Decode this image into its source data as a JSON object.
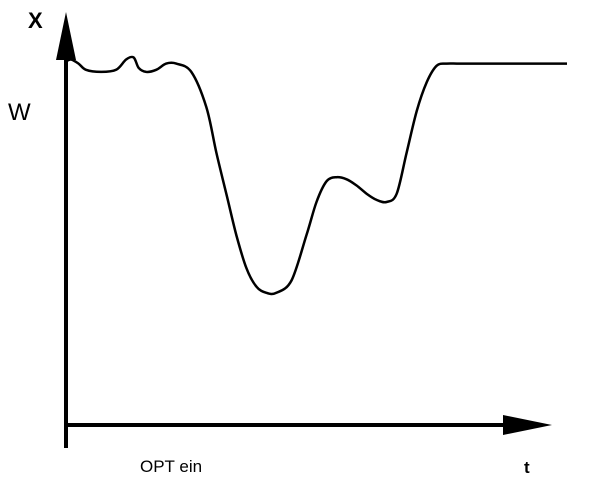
{
  "chart_data": {
    "type": "line",
    "title": "",
    "xlabel": "t",
    "ylabel": "X",
    "setpoint_label": "W",
    "annotation": "OPT ein",
    "grid": false,
    "legend": "none",
    "x_range": [
      0,
      10
    ],
    "y_range": [
      0,
      10
    ],
    "line_color": "#000000",
    "series": [
      {
        "x": [
          0.0,
          0.1,
          0.25,
          0.4,
          0.7,
          1.0,
          1.2,
          1.35,
          1.45,
          1.6,
          1.8,
          2.0,
          2.2,
          2.5,
          2.8,
          3.0,
          3.2,
          3.4,
          3.6,
          3.8,
          4.0,
          4.2,
          4.5,
          4.8,
          5.0,
          5.2,
          5.4,
          5.6,
          5.8,
          6.0,
          6.2,
          6.4,
          6.6,
          6.8,
          7.0,
          7.2,
          7.4,
          7.6,
          7.8,
          8.0,
          8.2,
          8.5,
          8.8,
          9.2,
          9.6,
          10.0
        ],
        "y": [
          8.8,
          8.85,
          8.75,
          8.6,
          8.55,
          8.6,
          8.85,
          8.9,
          8.65,
          8.55,
          8.6,
          8.75,
          8.75,
          8.55,
          7.7,
          6.6,
          5.6,
          4.6,
          3.8,
          3.35,
          3.2,
          3.2,
          3.5,
          4.6,
          5.4,
          5.9,
          6.0,
          5.95,
          5.8,
          5.6,
          5.45,
          5.4,
          5.6,
          6.6,
          7.6,
          8.3,
          8.7,
          8.75,
          8.75,
          8.75,
          8.75,
          8.75,
          8.75,
          8.75,
          8.75,
          8.75
        ]
      }
    ]
  }
}
